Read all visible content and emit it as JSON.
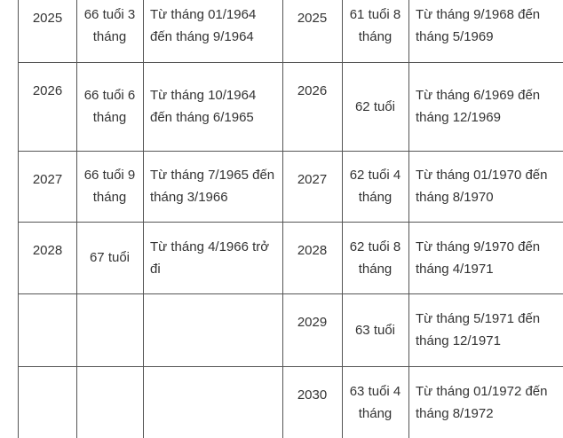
{
  "table": {
    "left": {
      "rows": [
        [
          "2025",
          "66 tuổi 3 tháng",
          "Từ tháng 01/1964 đến tháng 9/1964"
        ],
        [
          "2026",
          "66 tuổi 6 tháng",
          "Từ tháng 10/1964 đến tháng 6/1965"
        ],
        [
          "2027",
          "66 tuổi 9 tháng",
          "Từ tháng 7/1965 đến tháng 3/1966"
        ],
        [
          "2028",
          "67 tuổi",
          "Từ tháng 4/1966 trở đi"
        ]
      ]
    },
    "right": {
      "rows": [
        [
          "2025",
          "61 tuổi 8 tháng",
          "Từ tháng 9/1968 đến tháng 5/1969"
        ],
        [
          "2026",
          "62 tuổi",
          "Từ tháng 6/1969 đến tháng 12/1969"
        ],
        [
          "2027",
          "62 tuổi 4 tháng",
          "Từ tháng 01/1970 đến tháng 8/1970"
        ],
        [
          "2028",
          "62 tuổi 8 tháng",
          "Từ tháng 9/1970 đến tháng 4/1971"
        ],
        [
          "2029",
          "63 tuổi",
          "Từ tháng 5/1971 đến tháng 12/1971"
        ],
        [
          "2030",
          "63 tuổi 4 tháng",
          "Từ tháng 01/1972 đến tháng 8/1972"
        ]
      ]
    }
  }
}
